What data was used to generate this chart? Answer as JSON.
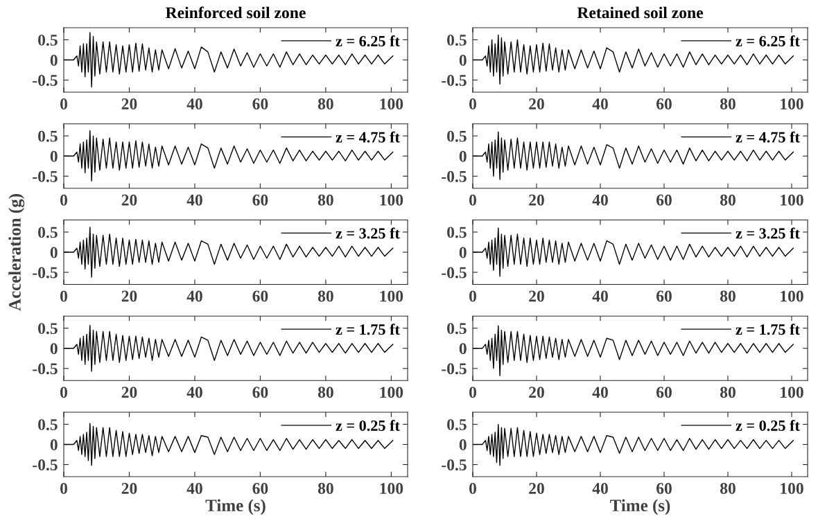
{
  "chart_data": [
    {
      "type": "line",
      "title": "Reinforced soil zone",
      "x": [
        0,
        3,
        4,
        4.5,
        5,
        5.5,
        6,
        6.5,
        7,
        7.5,
        8,
        8.5,
        9,
        9.5,
        10,
        11,
        12,
        13,
        14,
        15,
        16,
        17,
        18,
        19,
        20,
        21,
        22,
        23,
        24,
        25,
        26,
        27,
        28,
        29,
        30,
        32,
        34,
        36,
        38,
        40,
        42,
        44,
        46,
        48,
        50,
        52,
        54,
        56,
        58,
        60,
        62,
        64,
        66,
        68,
        70,
        72,
        74,
        76,
        78,
        80,
        82,
        84,
        86,
        88,
        90,
        92,
        94,
        96,
        98,
        100.5
      ],
      "series": [
        {
          "name": "z = 6.25 ft",
          "color": "#000000",
          "values": [
            0,
            0,
            0.1,
            -0.15,
            0.35,
            -0.3,
            0.4,
            -0.42,
            0.4,
            -0.3,
            0.68,
            -0.67,
            0.58,
            -0.4,
            0.45,
            -0.35,
            0.45,
            -0.3,
            0.45,
            -0.3,
            0.38,
            -0.35,
            0.35,
            -0.3,
            0.38,
            -0.3,
            0.42,
            -0.28,
            0.4,
            -0.25,
            0.3,
            -0.3,
            0.25,
            -0.25,
            0.25,
            -0.22,
            0.28,
            -0.2,
            0.22,
            -0.22,
            0.32,
            0.2,
            -0.3,
            0.2,
            -0.2,
            0.27,
            -0.15,
            0.18,
            -0.18,
            0.15,
            -0.15,
            0.15,
            -0.18,
            0.2,
            -0.12,
            0.15,
            -0.12,
            0.12,
            -0.1,
            0.12,
            -0.1,
            0.12,
            -0.12,
            0.15,
            -0.1,
            0.12,
            -0.1,
            0.12,
            -0.1,
            0.1
          ]
        }
      ],
      "xlim": [
        0,
        105
      ],
      "xticks": [
        0,
        20,
        40,
        60,
        80,
        100
      ],
      "ylim": [
        -0.8,
        0.8
      ],
      "yticks": [
        -0.5,
        0,
        0.5
      ],
      "legend": "top right",
      "grid": false
    },
    {
      "type": "line",
      "title": "Retained soil zone",
      "x": [
        0,
        3,
        4,
        4.5,
        5,
        5.5,
        6,
        6.5,
        7,
        7.5,
        8,
        8.5,
        9,
        9.5,
        10,
        11,
        12,
        13,
        14,
        15,
        16,
        17,
        18,
        19,
        20,
        21,
        22,
        23,
        24,
        25,
        26,
        27,
        28,
        29,
        30,
        32,
        34,
        36,
        38,
        40,
        42,
        44,
        46,
        48,
        50,
        52,
        54,
        56,
        58,
        60,
        62,
        64,
        66,
        68,
        70,
        72,
        74,
        76,
        78,
        80,
        82,
        84,
        86,
        88,
        90,
        92,
        94,
        96,
        98,
        100.5
      ],
      "series": [
        {
          "name": "z = 6.25 ft",
          "color": "#000000",
          "values": [
            0,
            0,
            0.1,
            -0.15,
            0.35,
            -0.3,
            0.5,
            -0.4,
            0.4,
            -0.3,
            0.62,
            -0.6,
            0.55,
            -0.4,
            0.45,
            -0.35,
            0.45,
            -0.3,
            0.5,
            -0.3,
            0.38,
            -0.35,
            0.35,
            -0.3,
            0.38,
            -0.3,
            0.42,
            -0.28,
            0.4,
            -0.25,
            0.3,
            -0.3,
            0.25,
            -0.25,
            0.25,
            -0.22,
            0.25,
            -0.2,
            0.22,
            -0.22,
            0.3,
            0.2,
            -0.3,
            0.2,
            -0.2,
            0.27,
            -0.15,
            0.18,
            -0.18,
            0.15,
            -0.15,
            0.15,
            -0.18,
            0.2,
            -0.12,
            0.15,
            -0.12,
            0.12,
            -0.1,
            0.12,
            -0.1,
            0.12,
            -0.12,
            0.15,
            -0.1,
            0.12,
            -0.1,
            0.12,
            -0.1,
            0.1
          ]
        }
      ],
      "xlim": [
        0,
        105
      ],
      "xticks": [
        0,
        20,
        40,
        60,
        80,
        100
      ],
      "ylim": [
        -0.8,
        0.8
      ],
      "yticks": [
        -0.5,
        0,
        0.5
      ],
      "legend": "top right",
      "grid": false
    },
    {
      "type": "line",
      "x": [
        0,
        3,
        4,
        4.5,
        5,
        5.5,
        6,
        6.5,
        7,
        7.5,
        8,
        8.5,
        9,
        9.5,
        10,
        11,
        12,
        13,
        14,
        15,
        16,
        17,
        18,
        19,
        20,
        21,
        22,
        23,
        24,
        25,
        26,
        27,
        28,
        29,
        30,
        32,
        34,
        36,
        38,
        40,
        42,
        44,
        46,
        48,
        50,
        52,
        54,
        56,
        58,
        60,
        62,
        64,
        66,
        68,
        70,
        72,
        74,
        76,
        78,
        80,
        82,
        84,
        86,
        88,
        90,
        92,
        94,
        96,
        98,
        100.5
      ],
      "series": [
        {
          "name": "z = 4.75 ft",
          "color": "#000000",
          "values": [
            0,
            0,
            0.1,
            -0.15,
            0.3,
            -0.3,
            0.35,
            -0.42,
            0.4,
            -0.3,
            0.63,
            -0.62,
            0.5,
            -0.4,
            0.45,
            -0.35,
            0.42,
            -0.3,
            0.45,
            -0.3,
            0.35,
            -0.35,
            0.35,
            -0.3,
            0.35,
            -0.3,
            0.38,
            -0.28,
            0.35,
            -0.25,
            0.3,
            -0.3,
            0.22,
            -0.25,
            0.25,
            -0.22,
            0.25,
            -0.2,
            0.22,
            -0.22,
            0.3,
            0.2,
            -0.3,
            0.2,
            -0.2,
            0.25,
            -0.15,
            0.18,
            -0.18,
            0.15,
            -0.15,
            0.15,
            -0.18,
            0.2,
            -0.12,
            0.15,
            -0.12,
            0.12,
            -0.1,
            0.12,
            -0.1,
            0.12,
            -0.12,
            0.15,
            -0.1,
            0.12,
            -0.1,
            0.12,
            -0.1,
            0.1
          ]
        }
      ],
      "xlim": [
        0,
        105
      ],
      "xticks": [
        0,
        20,
        40,
        60,
        80,
        100
      ],
      "ylim": [
        -0.8,
        0.8
      ],
      "yticks": [
        -0.5,
        0,
        0.5
      ],
      "legend": "top right",
      "grid": false
    },
    {
      "type": "line",
      "x": [
        0,
        3,
        4,
        4.5,
        5,
        5.5,
        6,
        6.5,
        7,
        7.5,
        8,
        8.5,
        9,
        9.5,
        10,
        11,
        12,
        13,
        14,
        15,
        16,
        17,
        18,
        19,
        20,
        21,
        22,
        23,
        24,
        25,
        26,
        27,
        28,
        29,
        30,
        32,
        34,
        36,
        38,
        40,
        42,
        44,
        46,
        48,
        50,
        52,
        54,
        56,
        58,
        60,
        62,
        64,
        66,
        68,
        70,
        72,
        74,
        76,
        78,
        80,
        82,
        84,
        86,
        88,
        90,
        92,
        94,
        96,
        98,
        100.5
      ],
      "series": [
        {
          "name": "z = 4.75 ft",
          "color": "#000000",
          "values": [
            0,
            0,
            0.1,
            -0.15,
            0.3,
            -0.3,
            0.35,
            -0.5,
            0.4,
            -0.3,
            0.6,
            -0.58,
            0.45,
            -0.4,
            0.4,
            -0.35,
            0.42,
            -0.3,
            0.45,
            -0.3,
            0.35,
            -0.35,
            0.35,
            -0.3,
            0.35,
            -0.3,
            0.35,
            -0.28,
            0.35,
            -0.25,
            0.3,
            -0.3,
            0.22,
            -0.25,
            0.25,
            -0.22,
            0.25,
            -0.2,
            0.22,
            -0.22,
            0.28,
            0.2,
            -0.3,
            0.2,
            -0.2,
            0.25,
            -0.15,
            0.18,
            -0.18,
            0.15,
            -0.15,
            0.15,
            -0.2,
            0.2,
            -0.12,
            0.15,
            -0.12,
            0.12,
            -0.1,
            0.12,
            -0.1,
            0.12,
            -0.12,
            0.15,
            -0.1,
            0.12,
            -0.1,
            0.12,
            -0.1,
            0.1
          ]
        }
      ],
      "xlim": [
        0,
        105
      ],
      "xticks": [
        0,
        20,
        40,
        60,
        80,
        100
      ],
      "ylim": [
        -0.8,
        0.8
      ],
      "yticks": [
        -0.5,
        0,
        0.5
      ],
      "legend": "top right",
      "grid": false
    },
    {
      "type": "line",
      "ylabel": "Acceleration (g)",
      "x": [
        0,
        3,
        4,
        4.5,
        5,
        5.5,
        6,
        6.5,
        7,
        7.5,
        8,
        8.5,
        9,
        9.5,
        10,
        11,
        12,
        13,
        14,
        15,
        16,
        17,
        18,
        19,
        20,
        21,
        22,
        23,
        24,
        25,
        26,
        27,
        28,
        29,
        30,
        32,
        34,
        36,
        38,
        40,
        42,
        44,
        46,
        48,
        50,
        52,
        54,
        56,
        58,
        60,
        62,
        64,
        66,
        68,
        70,
        72,
        74,
        76,
        78,
        80,
        82,
        84,
        86,
        88,
        90,
        92,
        94,
        96,
        98,
        100.5
      ],
      "series": [
        {
          "name": "z = 3.25 ft",
          "color": "#000000",
          "values": [
            0,
            0,
            0.1,
            -0.15,
            0.25,
            -0.3,
            0.3,
            -0.42,
            0.35,
            -0.3,
            0.62,
            -0.62,
            0.45,
            -0.4,
            0.42,
            -0.35,
            0.42,
            -0.3,
            0.45,
            -0.3,
            0.35,
            -0.35,
            0.35,
            -0.3,
            0.3,
            -0.3,
            0.32,
            -0.25,
            0.3,
            -0.25,
            0.28,
            -0.3,
            0.22,
            -0.25,
            0.25,
            -0.22,
            0.25,
            -0.2,
            0.22,
            -0.22,
            0.28,
            0.2,
            -0.3,
            0.2,
            -0.2,
            0.22,
            -0.15,
            0.18,
            -0.18,
            0.15,
            -0.15,
            0.15,
            -0.18,
            0.2,
            -0.12,
            0.15,
            -0.12,
            0.12,
            -0.1,
            0.12,
            -0.1,
            0.15,
            -0.12,
            0.15,
            -0.1,
            0.12,
            -0.1,
            0.12,
            -0.1,
            0.1
          ]
        }
      ],
      "xlim": [
        0,
        105
      ],
      "xticks": [
        0,
        20,
        40,
        60,
        80,
        100
      ],
      "ylim": [
        -0.8,
        0.8
      ],
      "yticks": [
        -0.5,
        0,
        0.5
      ],
      "legend": "top right",
      "grid": false
    },
    {
      "type": "line",
      "x": [
        0,
        3,
        4,
        4.5,
        5,
        5.5,
        6,
        6.5,
        7,
        7.5,
        8,
        8.5,
        9,
        9.5,
        10,
        11,
        12,
        13,
        14,
        15,
        16,
        17,
        18,
        19,
        20,
        21,
        22,
        23,
        24,
        25,
        26,
        27,
        28,
        29,
        30,
        32,
        34,
        36,
        38,
        40,
        42,
        44,
        46,
        48,
        50,
        52,
        54,
        56,
        58,
        60,
        62,
        64,
        66,
        68,
        70,
        72,
        74,
        76,
        78,
        80,
        82,
        84,
        86,
        88,
        90,
        92,
        94,
        96,
        98,
        100.5
      ],
      "series": [
        {
          "name": "z = 3.25 ft",
          "color": "#000000",
          "values": [
            0,
            0,
            0.1,
            -0.15,
            0.25,
            -0.3,
            0.3,
            -0.45,
            0.35,
            -0.3,
            0.6,
            -0.6,
            0.45,
            -0.4,
            0.42,
            -0.35,
            0.42,
            -0.3,
            0.45,
            -0.3,
            0.35,
            -0.35,
            0.35,
            -0.3,
            0.3,
            -0.3,
            0.35,
            -0.25,
            0.3,
            -0.25,
            0.28,
            -0.3,
            0.22,
            -0.25,
            0.25,
            -0.22,
            0.22,
            -0.2,
            0.22,
            -0.22,
            0.28,
            0.2,
            -0.3,
            0.2,
            -0.2,
            0.22,
            -0.15,
            0.18,
            -0.18,
            0.15,
            -0.2,
            0.15,
            -0.18,
            0.2,
            -0.12,
            0.15,
            -0.12,
            0.12,
            -0.1,
            0.12,
            -0.1,
            0.15,
            -0.12,
            0.15,
            -0.1,
            0.12,
            -0.1,
            0.12,
            -0.1,
            0.1
          ]
        }
      ],
      "xlim": [
        0,
        105
      ],
      "xticks": [
        0,
        20,
        40,
        60,
        80,
        100
      ],
      "ylim": [
        -0.8,
        0.8
      ],
      "yticks": [
        -0.5,
        0,
        0.5
      ],
      "legend": "top right",
      "grid": false
    },
    {
      "type": "line",
      "x": [
        0,
        3,
        4,
        4.5,
        5,
        5.5,
        6,
        6.5,
        7,
        7.5,
        8,
        8.5,
        9,
        9.5,
        10,
        11,
        12,
        13,
        14,
        15,
        16,
        17,
        18,
        19,
        20,
        21,
        22,
        23,
        24,
        25,
        26,
        27,
        28,
        29,
        30,
        32,
        34,
        36,
        38,
        40,
        42,
        44,
        46,
        48,
        50,
        52,
        54,
        56,
        58,
        60,
        62,
        64,
        66,
        68,
        70,
        72,
        74,
        76,
        78,
        80,
        82,
        84,
        86,
        88,
        90,
        92,
        94,
        96,
        98,
        100.5
      ],
      "series": [
        {
          "name": "z = 1.75 ft",
          "color": "#000000",
          "values": [
            0,
            0,
            0.1,
            -0.15,
            0.25,
            -0.3,
            0.3,
            -0.4,
            0.35,
            -0.3,
            0.57,
            -0.57,
            0.45,
            -0.4,
            0.42,
            -0.35,
            0.42,
            -0.3,
            0.42,
            -0.3,
            0.35,
            -0.35,
            0.32,
            -0.3,
            0.3,
            -0.28,
            0.3,
            -0.25,
            0.28,
            -0.22,
            0.25,
            -0.3,
            0.22,
            -0.22,
            0.22,
            -0.2,
            0.22,
            -0.2,
            0.2,
            -0.22,
            0.28,
            0.2,
            -0.3,
            0.2,
            -0.18,
            0.22,
            -0.15,
            0.18,
            -0.18,
            0.15,
            -0.15,
            0.15,
            -0.18,
            0.18,
            -0.12,
            0.15,
            -0.12,
            0.15,
            -0.1,
            0.12,
            -0.1,
            0.12,
            -0.12,
            0.12,
            -0.1,
            0.12,
            -0.1,
            0.12,
            -0.1,
            0.1
          ]
        }
      ],
      "xlim": [
        0,
        105
      ],
      "xticks": [
        0,
        20,
        40,
        60,
        80,
        100
      ],
      "ylim": [
        -0.8,
        0.8
      ],
      "yticks": [
        -0.5,
        0,
        0.5
      ],
      "legend": "top right",
      "grid": false
    },
    {
      "type": "line",
      "x": [
        0,
        3,
        4,
        4.5,
        5,
        5.5,
        6,
        6.5,
        7,
        7.5,
        8,
        8.5,
        9,
        9.5,
        10,
        11,
        12,
        13,
        14,
        15,
        16,
        17,
        18,
        19,
        20,
        21,
        22,
        23,
        24,
        25,
        26,
        27,
        28,
        29,
        30,
        32,
        34,
        36,
        38,
        40,
        42,
        44,
        46,
        48,
        50,
        52,
        54,
        56,
        58,
        60,
        62,
        64,
        66,
        68,
        70,
        72,
        74,
        76,
        78,
        80,
        82,
        84,
        86,
        88,
        90,
        92,
        94,
        96,
        98,
        100.5
      ],
      "series": [
        {
          "name": "z = 1.75 ft",
          "color": "#000000",
          "values": [
            0,
            0,
            0.1,
            -0.15,
            0.2,
            -0.3,
            0.25,
            -0.5,
            0.35,
            -0.3,
            0.56,
            -0.68,
            0.45,
            -0.4,
            0.42,
            -0.35,
            0.42,
            -0.3,
            0.42,
            -0.3,
            0.35,
            -0.35,
            0.32,
            -0.3,
            0.3,
            -0.28,
            0.3,
            -0.25,
            0.28,
            -0.22,
            0.25,
            -0.28,
            0.22,
            -0.22,
            0.22,
            -0.2,
            0.22,
            -0.2,
            0.2,
            -0.22,
            0.25,
            0.2,
            -0.28,
            0.2,
            -0.18,
            0.2,
            -0.15,
            0.18,
            -0.18,
            0.15,
            -0.15,
            0.15,
            -0.18,
            0.18,
            -0.12,
            0.15,
            -0.12,
            0.15,
            -0.1,
            0.12,
            -0.1,
            0.12,
            -0.12,
            0.12,
            -0.1,
            0.12,
            -0.1,
            0.12,
            -0.1,
            0.1
          ]
        }
      ],
      "xlim": [
        0,
        105
      ],
      "xticks": [
        0,
        20,
        40,
        60,
        80,
        100
      ],
      "ylim": [
        -0.8,
        0.8
      ],
      "yticks": [
        -0.5,
        0,
        0.5
      ],
      "legend": "top right",
      "grid": false
    },
    {
      "type": "line",
      "xlabel": "Time (s)",
      "x": [
        0,
        3,
        4,
        4.5,
        5,
        5.5,
        6,
        6.5,
        7,
        7.5,
        8,
        8.5,
        9,
        9.5,
        10,
        11,
        12,
        13,
        14,
        15,
        16,
        17,
        18,
        19,
        20,
        21,
        22,
        23,
        24,
        25,
        26,
        27,
        28,
        29,
        30,
        32,
        34,
        36,
        38,
        40,
        42,
        44,
        46,
        48,
        50,
        52,
        54,
        56,
        58,
        60,
        62,
        64,
        66,
        68,
        70,
        72,
        74,
        76,
        78,
        80,
        82,
        84,
        86,
        88,
        90,
        92,
        94,
        96,
        98,
        100.5
      ],
      "series": [
        {
          "name": "z = 0.25 ft",
          "color": "#000000",
          "values": [
            0,
            0,
            0.1,
            -0.15,
            0.2,
            -0.25,
            0.25,
            -0.3,
            0.3,
            -0.4,
            0.52,
            -0.52,
            0.45,
            -0.35,
            0.42,
            -0.3,
            0.42,
            -0.3,
            0.42,
            -0.3,
            0.35,
            -0.3,
            0.32,
            -0.3,
            0.28,
            -0.25,
            0.25,
            -0.22,
            0.25,
            -0.2,
            0.22,
            -0.28,
            0.2,
            -0.2,
            0.2,
            -0.18,
            0.2,
            -0.18,
            0.2,
            -0.2,
            0.22,
            0.18,
            -0.25,
            0.18,
            -0.18,
            0.18,
            -0.15,
            0.15,
            -0.15,
            0.15,
            -0.15,
            0.12,
            -0.15,
            0.15,
            -0.12,
            0.12,
            -0.12,
            0.12,
            -0.1,
            0.12,
            -0.1,
            0.1,
            -0.1,
            0.12,
            -0.1,
            0.1,
            -0.1,
            0.1,
            -0.1,
            0.1
          ]
        }
      ],
      "xlim": [
        0,
        105
      ],
      "xticks": [
        0,
        20,
        40,
        60,
        80,
        100
      ],
      "ylim": [
        -0.8,
        0.8
      ],
      "yticks": [
        -0.5,
        0,
        0.5
      ],
      "legend": "top right",
      "grid": false
    },
    {
      "type": "line",
      "xlabel": "Time (s)",
      "x": [
        0,
        3,
        4,
        4.5,
        5,
        5.5,
        6,
        6.5,
        7,
        7.5,
        8,
        8.5,
        9,
        9.5,
        10,
        11,
        12,
        13,
        14,
        15,
        16,
        17,
        18,
        19,
        20,
        21,
        22,
        23,
        24,
        25,
        26,
        27,
        28,
        29,
        30,
        32,
        34,
        36,
        38,
        40,
        42,
        44,
        46,
        48,
        50,
        52,
        54,
        56,
        58,
        60,
        62,
        64,
        66,
        68,
        70,
        72,
        74,
        76,
        78,
        80,
        82,
        84,
        86,
        88,
        90,
        92,
        94,
        96,
        98,
        100.5
      ],
      "series": [
        {
          "name": "z = 0.25 ft",
          "color": "#000000",
          "values": [
            0,
            0,
            0.1,
            -0.15,
            0.2,
            -0.25,
            0.25,
            -0.3,
            0.3,
            -0.45,
            0.5,
            -0.52,
            0.42,
            -0.35,
            0.4,
            -0.3,
            0.4,
            -0.3,
            0.42,
            -0.3,
            0.35,
            -0.3,
            0.32,
            -0.3,
            0.28,
            -0.25,
            0.25,
            -0.22,
            0.25,
            -0.2,
            0.22,
            -0.25,
            0.2,
            -0.2,
            0.2,
            -0.18,
            0.2,
            -0.18,
            0.2,
            -0.2,
            0.22,
            0.18,
            -0.22,
            0.18,
            -0.18,
            0.18,
            -0.15,
            0.15,
            -0.15,
            0.15,
            -0.15,
            0.12,
            -0.15,
            0.15,
            -0.12,
            0.12,
            -0.12,
            0.12,
            -0.1,
            0.12,
            -0.1,
            0.1,
            -0.1,
            0.12,
            -0.1,
            0.1,
            -0.1,
            0.1,
            -0.1,
            0.1
          ]
        }
      ],
      "xlim": [
        0,
        105
      ],
      "xticks": [
        0,
        20,
        40,
        60,
        80,
        100
      ],
      "ylim": [
        -0.8,
        0.8
      ],
      "yticks": [
        -0.5,
        0,
        0.5
      ],
      "legend": "top right",
      "grid": false
    }
  ]
}
